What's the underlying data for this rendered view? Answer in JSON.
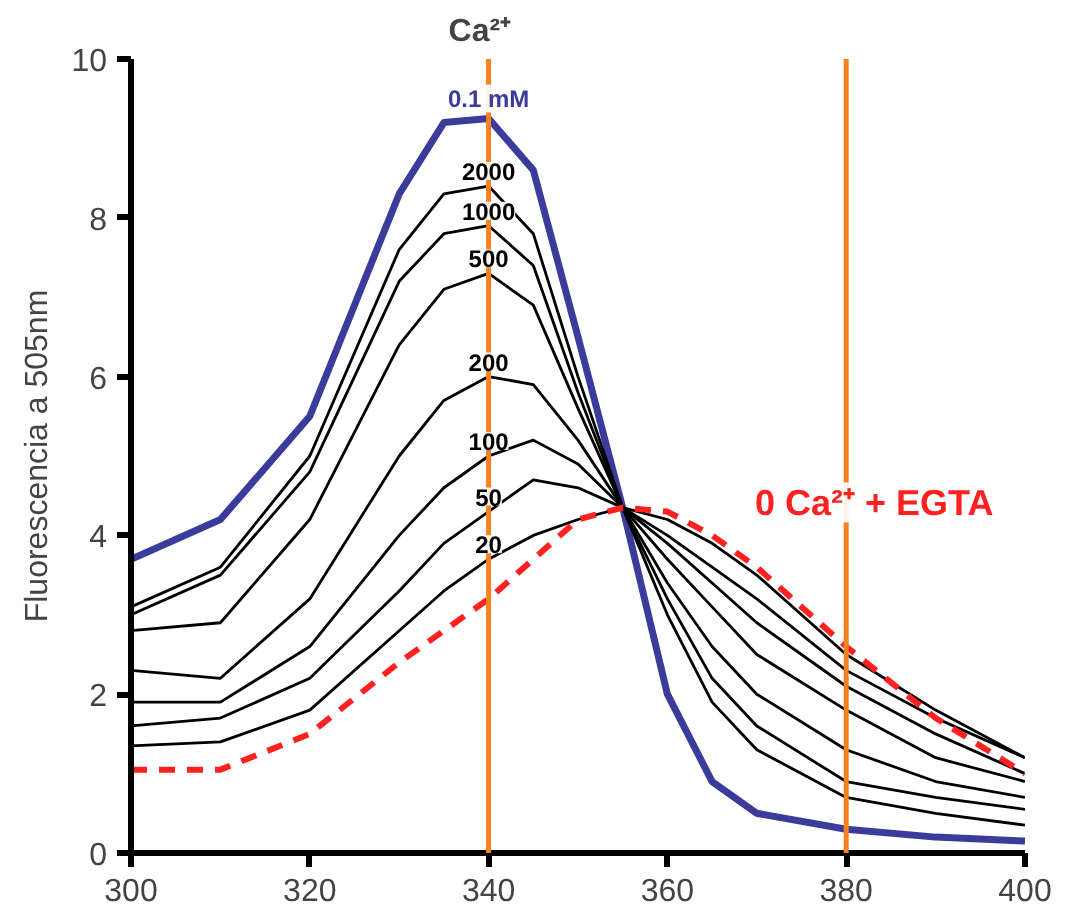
{
  "chart_data": {
    "type": "line",
    "ylabel": "Fluorescencia a 505nm",
    "annotations": [
      "Ca²⁺"
    ],
    "x": [
      300,
      310,
      320,
      330,
      335,
      340,
      345,
      350,
      355,
      360,
      365,
      370,
      380,
      390,
      400
    ],
    "xlim": [
      300,
      400
    ],
    "xticks": [
      300,
      320,
      340,
      360,
      380,
      400
    ],
    "ylim": [
      0,
      10
    ],
    "yticks": [
      0,
      2,
      4,
      6,
      8,
      10
    ],
    "grid": false,
    "legend": false,
    "marker": "none",
    "ref_lines": [
      {
        "axis": "x",
        "value": 340,
        "color": "#f5821f"
      },
      {
        "axis": "x",
        "value": 380,
        "color": "#f5821f"
      }
    ],
    "series": [
      {
        "name": "0.1 mM",
        "color": "#3b3b9c",
        "values": [
          3.7,
          4.2,
          5.5,
          8.3,
          9.2,
          9.25,
          8.6,
          6.5,
          4.35,
          2.0,
          0.9,
          0.5,
          0.3,
          0.2,
          0.15
        ]
      },
      {
        "name": "2000",
        "color": "#000000",
        "values": [
          3.1,
          3.6,
          5.0,
          7.6,
          8.3,
          8.4,
          7.8,
          6.0,
          4.35,
          3.0,
          1.9,
          1.3,
          0.7,
          0.5,
          0.35
        ]
      },
      {
        "name": "1000",
        "color": "#000000",
        "values": [
          3.0,
          3.5,
          4.8,
          7.2,
          7.8,
          7.9,
          7.4,
          5.8,
          4.35,
          3.2,
          2.2,
          1.6,
          0.9,
          0.7,
          0.55
        ]
      },
      {
        "name": "500",
        "color": "#000000",
        "values": [
          2.8,
          2.9,
          4.2,
          6.4,
          7.1,
          7.3,
          6.9,
          5.6,
          4.35,
          3.4,
          2.6,
          2.0,
          1.3,
          0.9,
          0.7
        ]
      },
      {
        "name": "200",
        "color": "#000000",
        "values": [
          2.3,
          2.2,
          3.2,
          5.0,
          5.7,
          6.0,
          5.9,
          5.2,
          4.35,
          3.7,
          3.1,
          2.5,
          1.8,
          1.2,
          0.9
        ]
      },
      {
        "name": "100",
        "color": "#000000",
        "values": [
          1.9,
          1.9,
          2.6,
          4.0,
          4.6,
          5.0,
          5.2,
          4.9,
          4.35,
          3.9,
          3.4,
          2.9,
          2.1,
          1.5,
          1.0
        ]
      },
      {
        "name": "50",
        "color": "#000000",
        "values": [
          1.6,
          1.7,
          2.2,
          3.3,
          3.9,
          4.3,
          4.7,
          4.6,
          4.35,
          4.0,
          3.6,
          3.2,
          2.3,
          1.7,
          1.2
        ]
      },
      {
        "name": "20",
        "color": "#000000",
        "values": [
          1.35,
          1.4,
          1.8,
          2.8,
          3.3,
          3.7,
          4.0,
          4.2,
          4.35,
          4.2,
          3.9,
          3.5,
          2.5,
          1.8,
          1.2
        ]
      },
      {
        "name": "0 Ca²⁺ + EGTA",
        "color": "#ff2020",
        "line_style": "dashed",
        "values": [
          1.05,
          1.05,
          1.5,
          2.4,
          2.8,
          3.2,
          3.7,
          4.2,
          4.35,
          4.3,
          4.0,
          3.6,
          2.6,
          1.7,
          1.0
        ]
      }
    ]
  }
}
